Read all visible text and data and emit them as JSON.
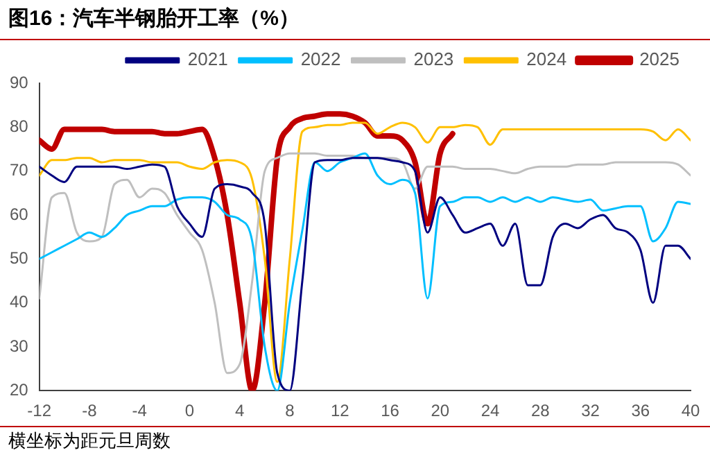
{
  "chart_data": {
    "type": "line",
    "title": "图16：汽车半钢胎开工率（%）",
    "annotations": [
      "横坐标为距元旦周数"
    ],
    "x": [
      -12,
      -11,
      -10,
      -9,
      -8,
      -7,
      -6,
      -5,
      -4,
      -3,
      -2,
      -1,
      0,
      1,
      2,
      3,
      4,
      5,
      6,
      7,
      8,
      9,
      10,
      11,
      12,
      13,
      14,
      15,
      16,
      17,
      18,
      19,
      20,
      21,
      22,
      23,
      24,
      25,
      26,
      27,
      28,
      29,
      30,
      31,
      32,
      33,
      34,
      35,
      36,
      37,
      38,
      39,
      40
    ],
    "series": [
      {
        "name": "2021",
        "color": "#000080",
        "values": [
          71,
          69,
          67.5,
          71,
          71,
          71,
          71,
          70.5,
          71,
          71.5,
          71,
          62,
          58,
          55,
          66,
          67,
          66.5,
          65,
          58,
          24,
          20,
          45,
          72,
          72.5,
          72.5,
          73,
          73,
          73,
          72.5,
          72,
          70,
          56,
          64,
          60,
          56,
          57,
          58,
          53,
          58,
          44,
          44,
          55,
          58,
          57,
          59,
          60,
          57,
          56,
          52,
          40,
          53,
          53,
          50
        ]
      },
      {
        "name": "2022",
        "color": "#00bfff",
        "values": [
          50,
          51.5,
          53,
          54.5,
          56,
          55,
          57,
          60,
          61,
          62,
          62,
          63.5,
          64,
          64,
          63,
          60,
          59,
          54,
          30,
          20,
          40,
          56.5,
          72,
          70,
          72,
          73,
          74,
          69,
          67,
          68,
          65,
          41,
          62,
          63,
          64,
          64,
          63,
          64,
          63,
          64,
          63,
          64,
          63.5,
          63,
          63.5,
          61,
          61.5,
          62,
          62,
          54,
          57,
          63,
          62.5
        ]
      },
      {
        "name": "2023",
        "color": "#bfbfbf",
        "values": [
          41,
          64,
          65,
          56,
          54,
          55,
          67,
          68,
          64,
          66,
          65,
          60,
          56,
          52,
          40,
          24,
          26,
          45,
          70,
          73,
          74,
          74,
          74,
          73.5,
          73.5,
          73.5,
          73,
          73,
          73,
          72,
          66,
          71,
          71,
          71,
          70.5,
          70.5,
          70.5,
          70,
          69.5,
          70.5,
          71,
          71,
          71,
          71.5,
          71.5,
          71.5,
          72,
          72,
          72,
          72,
          72,
          71.5,
          69
        ]
      },
      {
        "name": "2024",
        "color": "#ffc000",
        "values": [
          69,
          72.5,
          72.5,
          73,
          73,
          72,
          72.5,
          72.5,
          72.5,
          72,
          72,
          72,
          71,
          70.5,
          72,
          72.5,
          72,
          68,
          50,
          22,
          50,
          79,
          80,
          80.5,
          80.5,
          81,
          81,
          78.5,
          80,
          81,
          80,
          76.5,
          80,
          80,
          80.5,
          80,
          76,
          79.5,
          79.5,
          79.5,
          79.5,
          79.5,
          79.5,
          79.5,
          79.5,
          79.5,
          79.5,
          79.5,
          79.5,
          79,
          77,
          79.5,
          77
        ]
      },
      {
        "name": "2025",
        "color": "#c00000",
        "values": [
          77,
          75,
          79.5,
          79.5,
          79.5,
          79.5,
          79,
          79,
          79,
          79,
          78.5,
          78.5,
          79,
          79.5,
          73,
          60,
          40,
          20,
          40,
          73,
          80,
          82,
          82.5,
          83,
          83,
          82.5,
          81,
          78,
          78,
          77,
          72,
          58,
          74,
          78.5,
          null,
          null,
          null,
          null,
          null,
          null,
          null,
          null,
          null,
          null,
          null,
          null,
          null,
          null,
          null,
          null,
          null,
          null,
          null
        ]
      }
    ],
    "xlim": [
      -12,
      40
    ],
    "xticks": [
      -12,
      -8,
      -4,
      0,
      4,
      8,
      12,
      16,
      20,
      24,
      28,
      32,
      36,
      40
    ],
    "ylim": [
      20,
      90
    ],
    "yticks": [
      20,
      30,
      40,
      50,
      60,
      70,
      80,
      90
    ],
    "grid": false,
    "legend": "top",
    "marker": "none",
    "line_style": "solid"
  }
}
